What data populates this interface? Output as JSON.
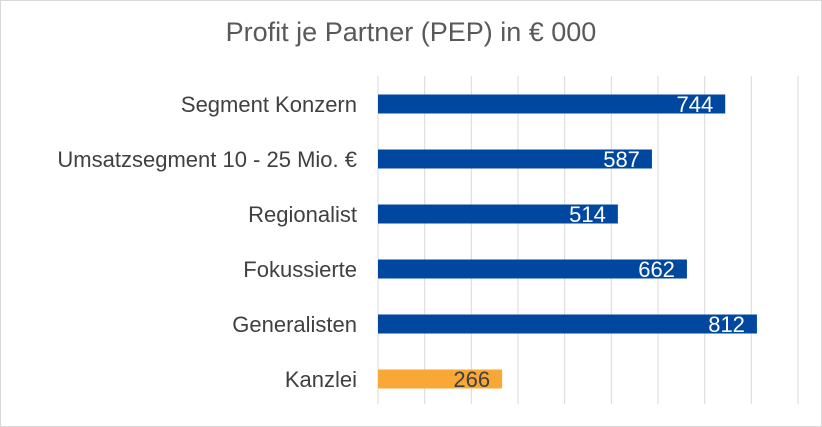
{
  "chart_data": {
    "type": "bar",
    "orientation": "horizontal",
    "title": "Profit je Partner (PEP) in € 000",
    "categories": [
      "Segment Konzern",
      "Umsatzsegment 10 - 25 Mio. €",
      "Regionalist",
      "Fokussierte",
      "Generalisten",
      "Kanzlei"
    ],
    "values": [
      744,
      587,
      514,
      662,
      812,
      266
    ],
    "bar_colors": [
      "#0047a0",
      "#0047a0",
      "#0047a0",
      "#0047a0",
      "#0047a0",
      "#f9a735"
    ],
    "label_colors": [
      "#ffffff",
      "#ffffff",
      "#ffffff",
      "#ffffff",
      "#ffffff",
      "#404040"
    ],
    "xlim": [
      0,
      900
    ],
    "x_gridline_step": 100,
    "grid": true,
    "legend": "none",
    "xlabel": "",
    "ylabel": ""
  }
}
